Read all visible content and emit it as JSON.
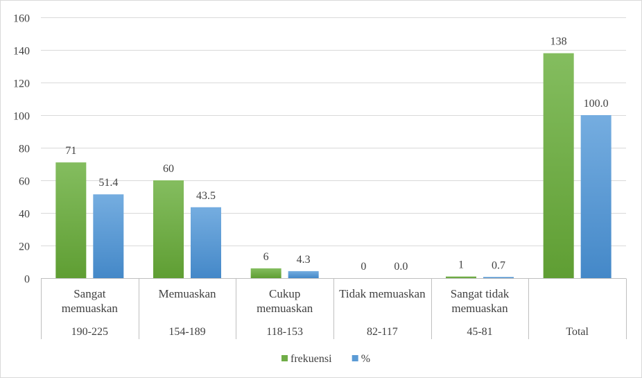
{
  "chart_data": {
    "type": "bar",
    "ylim": [
      0,
      160
    ],
    "yticks": [
      0,
      20,
      40,
      60,
      80,
      100,
      120,
      140,
      160
    ],
    "grid": true,
    "legend_position": "bottom",
    "categories": [
      {
        "label": [
          "Sangat",
          "memuaskan"
        ],
        "range": "190-225"
      },
      {
        "label": [
          "Memuaskan"
        ],
        "range": "154-189"
      },
      {
        "label": [
          "Cukup",
          "memuaskan"
        ],
        "range": "118-153"
      },
      {
        "label": [
          "Tidak memuaskan"
        ],
        "range": "82-117"
      },
      {
        "label": [
          "Sangat tidak",
          "memuaskan"
        ],
        "range": "45-81"
      },
      {
        "label": [
          ""
        ],
        "range": "Total"
      }
    ],
    "series": [
      {
        "name": "frekuensi",
        "color": "#70ad47",
        "values": [
          71,
          60,
          6,
          0,
          1,
          138
        ],
        "labels": [
          "71",
          "60",
          "6",
          "0",
          "1",
          "138"
        ]
      },
      {
        "name": "%",
        "color": "#5b9bd5",
        "values": [
          51.4,
          43.5,
          4.3,
          0.0,
          0.7,
          100.0
        ],
        "labels": [
          "51.4",
          "43.5",
          "4.3",
          "0.0",
          "0.7",
          "100.0"
        ]
      }
    ]
  }
}
